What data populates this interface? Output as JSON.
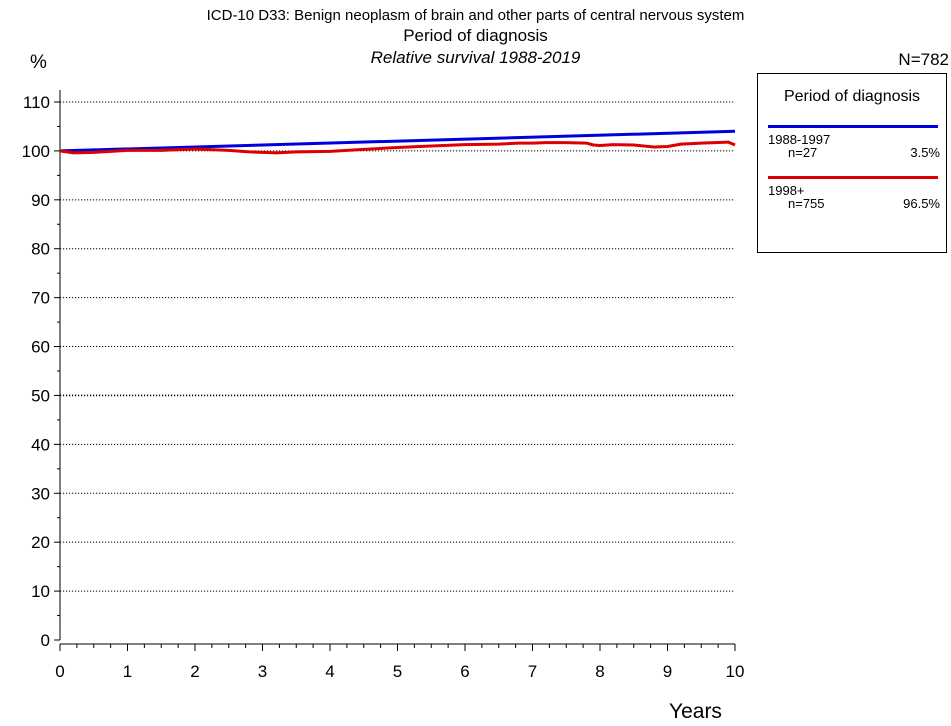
{
  "header": {
    "title": "ICD-10 D33: Benign neoplasm of brain and other parts of central nervous system",
    "subtitle": "Period of diagnosis",
    "subsubtitle": "Relative survival 1988-2019",
    "n_total": "N=782"
  },
  "legend": {
    "title": "Period of diagnosis",
    "entries": [
      {
        "label": "1988-1997",
        "n": "n=27",
        "pct": "3.5%",
        "color": "#0000dd"
      },
      {
        "label": "1998+",
        "n": "n=755",
        "pct": "96.5%",
        "color": "#dd0000"
      }
    ]
  },
  "chart_data": {
    "type": "line",
    "title": "Relative survival 1988-2019",
    "xlabel": "Years",
    "ylabel": "%",
    "xlim": [
      0,
      10
    ],
    "ylim": [
      0,
      110
    ],
    "xticks": [
      0,
      1,
      2,
      3,
      4,
      5,
      6,
      7,
      8,
      9,
      10
    ],
    "yticks": [
      0,
      10,
      20,
      30,
      40,
      50,
      60,
      70,
      80,
      90,
      100,
      110
    ],
    "grid": true,
    "legend_position": "right",
    "series": [
      {
        "name": "1988-1997",
        "color": "#0000dd",
        "x": [
          0,
          10
        ],
        "y": [
          100,
          104
        ]
      },
      {
        "name": "1998+",
        "color": "#dd0000",
        "x": [
          0,
          0.2,
          0.5,
          1.0,
          1.5,
          2.0,
          2.5,
          2.8,
          3.0,
          3.2,
          3.5,
          4.0,
          4.5,
          5.0,
          5.5,
          6.0,
          6.5,
          6.8,
          7.0,
          7.2,
          7.5,
          7.8,
          7.9,
          8.0,
          8.2,
          8.5,
          8.8,
          9.0,
          9.2,
          9.5,
          9.7,
          9.9,
          10.0
        ],
        "y": [
          100,
          99.6,
          99.7,
          100.1,
          100.1,
          100.4,
          100.1,
          99.8,
          99.7,
          99.6,
          99.8,
          99.9,
          100.3,
          100.7,
          101.0,
          101.3,
          101.4,
          101.6,
          101.6,
          101.7,
          101.7,
          101.6,
          101.2,
          101.1,
          101.3,
          101.2,
          100.8,
          100.9,
          101.4,
          101.6,
          101.7,
          101.8,
          101.2
        ]
      }
    ]
  }
}
